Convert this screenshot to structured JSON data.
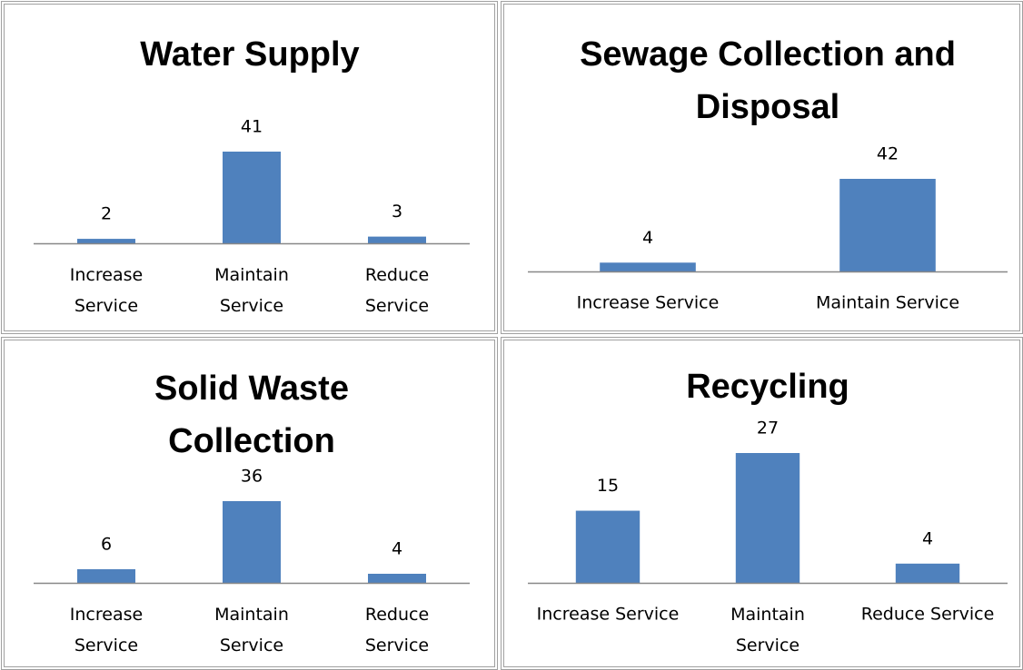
{
  "chart_data": [
    {
      "type": "bar",
      "title": "Water Supply",
      "categories": [
        "Increase Service",
        "Maintain Service",
        "Reduce Service"
      ],
      "values": [
        2,
        41,
        3
      ],
      "color": "#4f81bd"
    },
    {
      "type": "bar",
      "title": "Sewage Collection and Disposal",
      "categories": [
        "Increase Service",
        "Maintain Service"
      ],
      "values": [
        4,
        42
      ],
      "color": "#4f81bd"
    },
    {
      "type": "bar",
      "title": "Solid Waste Collection",
      "categories": [
        "Increase Service",
        "Maintain Service",
        "Reduce Service"
      ],
      "values": [
        6,
        36,
        4
      ],
      "color": "#4f81bd"
    },
    {
      "type": "bar",
      "title": "Recycling",
      "categories": [
        "Increase Service",
        "Maintain Service",
        "Reduce Service"
      ],
      "values": [
        15,
        27,
        4
      ],
      "color": "#4f81bd"
    }
  ]
}
